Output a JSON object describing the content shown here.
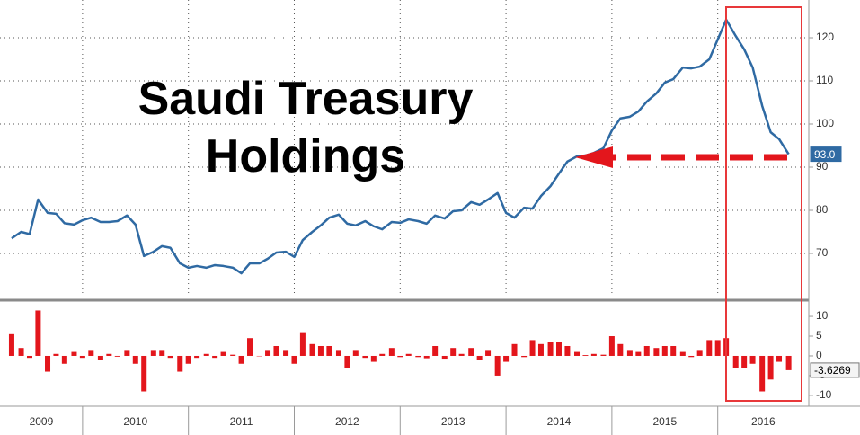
{
  "chart_data": [
    {
      "type": "line",
      "title": "Saudi Treasury Holdings",
      "x": [
        2009.33,
        2009.42,
        2009.5,
        2009.58,
        2009.67,
        2009.75,
        2009.83,
        2009.92,
        2010,
        2010.08,
        2010.17,
        2010.25,
        2010.33,
        2010.42,
        2010.5,
        2010.58,
        2010.67,
        2010.75,
        2010.83,
        2010.92,
        2011,
        2011.08,
        2011.17,
        2011.25,
        2011.33,
        2011.42,
        2011.5,
        2011.58,
        2011.67,
        2011.75,
        2011.83,
        2011.92,
        2012,
        2012.08,
        2012.17,
        2012.25,
        2012.33,
        2012.42,
        2012.5,
        2012.58,
        2012.67,
        2012.75,
        2012.83,
        2012.92,
        2013,
        2013.08,
        2013.17,
        2013.25,
        2013.33,
        2013.42,
        2013.5,
        2013.58,
        2013.67,
        2013.75,
        2013.83,
        2013.92,
        2014,
        2014.08,
        2014.17,
        2014.25,
        2014.33,
        2014.42,
        2014.5,
        2014.58,
        2014.67,
        2014.75,
        2014.83,
        2014.92,
        2015,
        2015.08,
        2015.17,
        2015.25,
        2015.33,
        2015.42,
        2015.5,
        2015.58,
        2015.67,
        2015.75,
        2015.83,
        2015.92,
        2016,
        2016.08,
        2016.17,
        2016.25,
        2016.33,
        2016.42,
        2016.5,
        2016.58,
        2016.67
      ],
      "values": [
        73.5,
        75,
        74.5,
        82.5,
        79.4,
        79.2,
        77,
        76.7,
        77.7,
        78.3,
        77.3,
        77.3,
        77.5,
        78.8,
        76.7,
        69.4,
        70.4,
        71.7,
        71.3,
        67.7,
        66.7,
        67.1,
        66.7,
        67.3,
        67.1,
        66.7,
        65.4,
        67.7,
        67.7,
        68.8,
        70.2,
        70.4,
        69.2,
        73.1,
        75,
        76.5,
        78.3,
        79,
        76.9,
        76.5,
        77.5,
        76.3,
        75.6,
        77.3,
        77.1,
        77.9,
        77.5,
        76.9,
        78.8,
        78.1,
        79.8,
        80,
        81.9,
        81.3,
        82.5,
        84,
        79.4,
        78.3,
        80.6,
        80.4,
        83.3,
        85.6,
        88.5,
        91.3,
        92.5,
        92.7,
        93.3,
        94.4,
        98.5,
        101.3,
        101.7,
        102.9,
        105.2,
        107.1,
        109.6,
        110.4,
        113.1,
        112.9,
        113.3,
        115,
        119.6,
        124.2,
        120.4,
        117.3,
        113.1,
        104.2,
        98.1,
        96.5,
        93
      ],
      "value_labels": [
        null,
        null,
        null,
        null,
        null,
        null,
        null,
        null,
        null,
        null,
        null,
        null,
        null,
        null,
        null,
        null,
        null,
        null,
        null,
        null,
        null,
        null,
        null,
        null,
        null,
        null,
        null,
        null,
        null,
        null,
        null,
        null,
        null,
        null,
        null,
        null,
        null,
        null,
        null,
        null,
        null,
        null,
        null,
        null,
        null,
        null,
        null,
        null,
        null,
        null,
        null,
        null,
        null,
        null,
        null,
        null,
        null,
        null,
        null,
        null,
        null,
        null,
        null,
        null,
        null,
        null,
        null,
        null,
        null,
        null,
        null,
        null,
        null,
        null,
        null,
        null,
        null,
        null,
        null,
        null,
        null,
        null,
        null,
        null,
        null,
        null,
        null,
        null,
        "93.0"
      ],
      "color": "#2f6aa3",
      "xlim": [
        2009.22,
        2016.86
      ],
      "ylim": [
        60,
        128.75
      ],
      "yticks": [
        70,
        80,
        90,
        100,
        110,
        120
      ],
      "grid": true
    },
    {
      "type": "bar",
      "x": [
        2009.33,
        2009.42,
        2009.5,
        2009.58,
        2009.67,
        2009.75,
        2009.83,
        2009.92,
        2010,
        2010.08,
        2010.17,
        2010.25,
        2010.33,
        2010.42,
        2010.5,
        2010.58,
        2010.67,
        2010.75,
        2010.83,
        2010.92,
        2011,
        2011.08,
        2011.17,
        2011.25,
        2011.33,
        2011.42,
        2011.5,
        2011.58,
        2011.67,
        2011.75,
        2011.83,
        2011.92,
        2012,
        2012.08,
        2012.17,
        2012.25,
        2012.33,
        2012.42,
        2012.5,
        2012.58,
        2012.67,
        2012.75,
        2012.83,
        2012.92,
        2013,
        2013.08,
        2013.17,
        2013.25,
        2013.33,
        2013.42,
        2013.5,
        2013.58,
        2013.67,
        2013.75,
        2013.83,
        2013.92,
        2014,
        2014.08,
        2014.17,
        2014.25,
        2014.33,
        2014.42,
        2014.5,
        2014.58,
        2014.67,
        2014.75,
        2014.83,
        2014.92,
        2015,
        2015.08,
        2015.17,
        2015.25,
        2015.33,
        2015.42,
        2015.5,
        2015.58,
        2015.67,
        2015.75,
        2015.83,
        2015.92,
        2016,
        2016.08,
        2016.17,
        2016.25,
        2016.33,
        2016.42,
        2016.5,
        2016.58,
        2016.67
      ],
      "values": [
        5.5,
        2,
        -0.5,
        11.5,
        -4,
        0.5,
        -2,
        1,
        -0.5,
        1.5,
        -1,
        0.5,
        -0.2,
        1.5,
        -2,
        -9,
        1.5,
        1.5,
        -0.5,
        -4,
        -2,
        -0.5,
        0.5,
        -0.5,
        1,
        0.3,
        -2,
        4.5,
        -0.1,
        1.5,
        2.5,
        1.5,
        -2,
        6,
        3,
        2.5,
        2.5,
        1.5,
        -3,
        1.5,
        -0.5,
        -1.5,
        0.5,
        2,
        -0.3,
        0.5,
        -0.3,
        -0.6,
        2.5,
        -0.7,
        2,
        0.5,
        2,
        -1,
        1.5,
        -5,
        -1.5,
        3,
        -0.3,
        4,
        3,
        3.5,
        3.5,
        2.5,
        1,
        0.2,
        0.5,
        0.3,
        5,
        3,
        1.5,
        1,
        2.5,
        2,
        2.5,
        2.5,
        1,
        -0.3,
        1.5,
        4,
        4,
        4.5,
        -3,
        -3,
        -2,
        -9,
        -6,
        -1.5,
        -3.6269
      ],
      "color": "#e3161c",
      "xlim": [
        2009.22,
        2016.86
      ],
      "xticks": [
        2009,
        2010,
        2011,
        2012,
        2013,
        2014,
        2015,
        2016
      ],
      "ylim": [
        -12.3,
        13.2
      ],
      "yticks": [
        10,
        5,
        0,
        -5,
        -10
      ]
    }
  ]
}
